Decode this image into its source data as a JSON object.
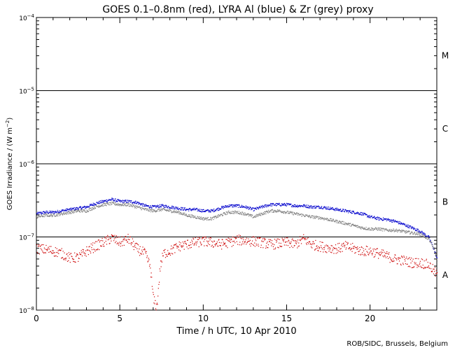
{
  "chart_data": {
    "type": "scatter",
    "title": "GOES 0.1–0.8nm (red), LYRA Al (blue) & Zr (grey) proxy",
    "xlabel": "Time / h UTC, 10 Apr 2010",
    "ylabel_main": "GOES Irradiance / (W m",
    "ylabel_exp": "−2",
    "ylabel_close": ")",
    "credit": "ROB/SIDC, Brussels, Belgium",
    "xlim": [
      0,
      24
    ],
    "ylim": [
      1e-08,
      0.0001
    ],
    "y_scale": "log",
    "x_ticks": [
      {
        "v": 0,
        "label": "0"
      },
      {
        "v": 5,
        "label": "5"
      },
      {
        "v": 10,
        "label": "10"
      },
      {
        "v": 15,
        "label": "15"
      },
      {
        "v": 20,
        "label": "20"
      }
    ],
    "y_ticks": [
      {
        "v": 1e-08,
        "base": "10",
        "exp": "−8"
      },
      {
        "v": 1e-07,
        "base": "10",
        "exp": "−7"
      },
      {
        "v": 1e-06,
        "base": "10",
        "exp": "−6"
      },
      {
        "v": 1e-05,
        "base": "10",
        "exp": "−5"
      },
      {
        "v": 0.0001,
        "base": "10",
        "exp": "−4"
      }
    ],
    "flare_lines": [
      1e-07,
      1e-06,
      1e-05
    ],
    "flare_classes": [
      {
        "label": "A",
        "v": 3e-08
      },
      {
        "label": "B",
        "v": 3e-07
      },
      {
        "label": "C",
        "v": 3e-06
      },
      {
        "label": "M",
        "v": 3e-05
      }
    ],
    "series": [
      {
        "color": "#0000cc",
        "x": [
          0.0,
          0.5,
          1.0,
          1.5,
          2.0,
          2.5,
          3.0,
          3.5,
          4.0,
          4.5,
          5.0,
          5.5,
          6.0,
          6.5,
          7.0,
          7.5,
          8.0,
          8.5,
          9.0,
          9.5,
          10.0,
          10.5,
          11.0,
          11.5,
          12.0,
          12.5,
          13.0,
          13.5,
          14.0,
          14.5,
          15.0,
          15.5,
          16.0,
          16.5,
          17.0,
          17.5,
          18.0,
          18.5,
          19.0,
          19.5,
          20.0,
          20.5,
          21.0,
          21.5,
          22.0,
          22.5,
          23.0,
          23.5,
          23.8,
          24.0
        ],
        "y": [
          2.1e-07,
          2.2e-07,
          2.2e-07,
          2.3e-07,
          2.4e-07,
          2.5e-07,
          2.6e-07,
          2.9e-07,
          3.1e-07,
          3.3e-07,
          3.1e-07,
          3.1e-07,
          3e-07,
          2.7e-07,
          2.6e-07,
          2.7e-07,
          2.6e-07,
          2.5e-07,
          2.4e-07,
          2.4e-07,
          2.3e-07,
          2.3e-07,
          2.5e-07,
          2.7e-07,
          2.7e-07,
          2.6e-07,
          2.4e-07,
          2.6e-07,
          2.8e-07,
          2.8e-07,
          2.8e-07,
          2.7e-07,
          2.7e-07,
          2.6e-07,
          2.6e-07,
          2.5e-07,
          2.4e-07,
          2.3e-07,
          2.2e-07,
          2.1e-07,
          1.9e-07,
          1.8e-07,
          1.75e-07,
          1.65e-07,
          1.5e-07,
          1.35e-07,
          1.2e-07,
          1e-07,
          7e-08,
          5e-08
        ]
      },
      {
        "color": "#808080",
        "x": [
          0.0,
          0.5,
          1.0,
          1.5,
          2.0,
          2.5,
          3.0,
          3.5,
          4.0,
          4.5,
          5.0,
          5.5,
          6.0,
          6.5,
          7.0,
          7.5,
          8.0,
          8.5,
          9.0,
          9.5,
          10.0,
          10.5,
          11.0,
          11.5,
          12.0,
          12.5,
          13.0,
          13.5,
          14.0,
          14.5,
          15.0,
          15.5,
          16.0,
          16.5,
          17.0,
          17.5,
          18.0,
          18.5,
          19.0,
          19.5,
          20.0,
          20.5,
          21.0,
          21.5,
          22.0,
          22.5,
          23.0,
          23.5,
          23.8,
          24.0
        ],
        "y": [
          1.9e-07,
          2e-07,
          2e-07,
          2.1e-07,
          2.2e-07,
          2.3e-07,
          2.3e-07,
          2.6e-07,
          2.8e-07,
          2.9e-07,
          2.8e-07,
          2.8e-07,
          2.6e-07,
          2.4e-07,
          2.3e-07,
          2.4e-07,
          2.3e-07,
          2.2e-07,
          2e-07,
          1.9e-07,
          1.8e-07,
          1.8e-07,
          2e-07,
          2.2e-07,
          2.2e-07,
          2.1e-07,
          1.9e-07,
          2.1e-07,
          2.3e-07,
          2.3e-07,
          2.2e-07,
          2.1e-07,
          2e-07,
          1.9e-07,
          1.85e-07,
          1.75e-07,
          1.65e-07,
          1.55e-07,
          1.45e-07,
          1.35e-07,
          1.3e-07,
          1.3e-07,
          1.25e-07,
          1.25e-07,
          1.2e-07,
          1.15e-07,
          1.1e-07,
          9.5e-08,
          7e-08,
          4.8e-08
        ]
      },
      {
        "color": "#cc0000",
        "x": [
          0.0,
          0.5,
          1.0,
          1.5,
          2.0,
          2.5,
          3.0,
          3.5,
          4.0,
          4.5,
          5.0,
          5.5,
          6.0,
          6.5,
          6.8,
          7.0,
          7.2,
          7.4,
          7.6,
          8.0,
          8.5,
          9.0,
          9.5,
          10.0,
          10.5,
          11.0,
          11.5,
          12.0,
          12.5,
          13.0,
          13.5,
          14.0,
          14.5,
          15.0,
          15.5,
          16.0,
          16.5,
          17.0,
          17.5,
          18.0,
          18.5,
          19.0,
          19.5,
          20.0,
          20.5,
          21.0,
          21.5,
          22.0,
          22.5,
          23.0,
          23.5,
          23.8,
          24.0
        ],
        "y": [
          7e-08,
          6.8e-08,
          6.5e-08,
          6e-08,
          5.2e-08,
          5.3e-08,
          6.5e-08,
          7.5e-08,
          8.5e-08,
          9.8e-08,
          8.5e-08,
          9.5e-08,
          7e-08,
          6e-08,
          4e-08,
          1.4e-08,
          1.1e-08,
          4e-08,
          6e-08,
          6.5e-08,
          7.5e-08,
          8e-08,
          8.5e-08,
          8.8e-08,
          8.5e-08,
          8e-08,
          8.5e-08,
          9.2e-08,
          9e-08,
          8.8e-08,
          8.5e-08,
          8e-08,
          8.2e-08,
          8.5e-08,
          8e-08,
          9.5e-08,
          8e-08,
          7.5e-08,
          7.2e-08,
          7e-08,
          7.5e-08,
          7e-08,
          6.5e-08,
          6.5e-08,
          6e-08,
          5.5e-08,
          5e-08,
          4.8e-08,
          4.5e-08,
          4.5e-08,
          4.2e-08,
          3.5e-08,
          3e-08
        ]
      }
    ]
  }
}
